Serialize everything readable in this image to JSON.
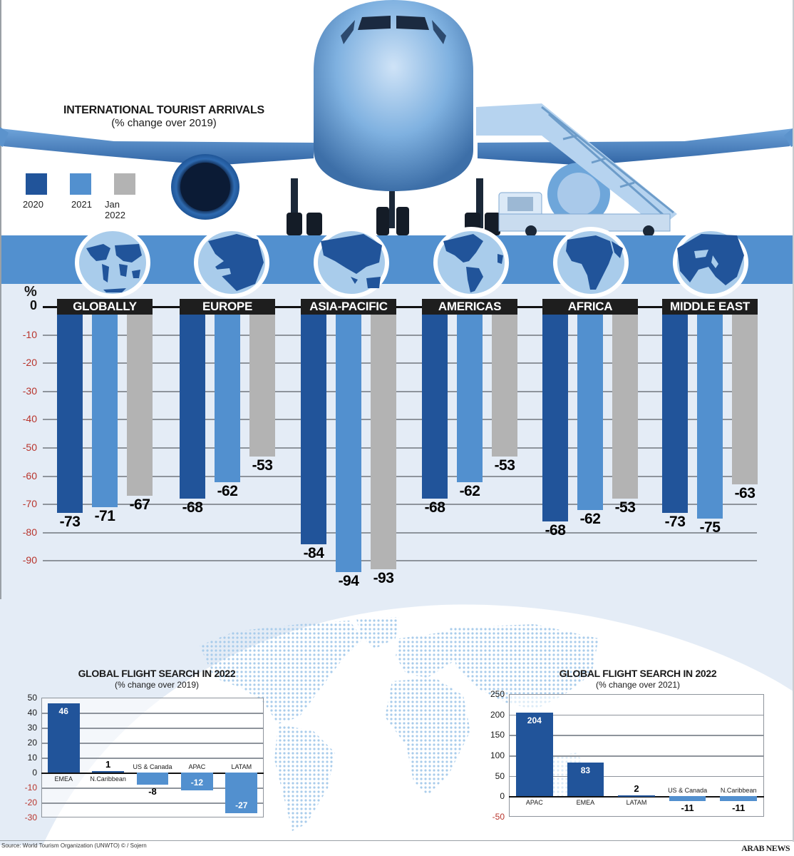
{
  "header": {
    "title": "INTERNATIONAL TOURIST ARRIVALS",
    "subtitle": "(% change over 2019)"
  },
  "legend": [
    {
      "label": "2020",
      "color": "#21549a"
    },
    {
      "label": "2021",
      "color": "#5290cf"
    },
    {
      "label": "Jan 2022",
      "color": "#b3b3b3"
    }
  ],
  "colors": {
    "band": "#5290cf",
    "chart_bg": "#e4ecf6",
    "globe_land": "#21549a",
    "globe_sea": "#a9cceb",
    "tick_negative": "#b8342c",
    "label_bg": "#1e1e1e",
    "map_dots": "#a9cceb"
  },
  "main_chart": {
    "unit_label": "%",
    "yticks": [
      "0",
      "-10",
      "-20",
      "-30",
      "-40",
      "-50",
      "-60",
      "-70",
      "-80",
      "-90"
    ]
  },
  "chart_data": [
    {
      "type": "bar",
      "title": "INTERNATIONAL TOURIST ARRIVALS",
      "subtitle": "(% change over 2019)",
      "xlabel": "",
      "ylabel": "%",
      "ylim": [
        -100,
        0
      ],
      "grid": true,
      "legend_position": "top-left",
      "categories": [
        "GLOBALLY",
        "EUROPE",
        "ASIA-PACIFIC",
        "AMERICAS",
        "AFRICA",
        "MIDDLE EAST"
      ],
      "series": [
        {
          "name": "2020",
          "values": [
            -73,
            -68,
            -84,
            -68,
            -68,
            -73
          ]
        },
        {
          "name": "2021",
          "values": [
            -71,
            -62,
            -94,
            -62,
            -62,
            -75
          ]
        },
        {
          "name": "Jan 2022",
          "values": [
            -67,
            -53,
            -93,
            -53,
            -53,
            -63
          ]
        }
      ]
    },
    {
      "type": "bar",
      "title": "GLOBAL FLIGHT SEARCH IN 2022",
      "subtitle": "(% change over 2019)",
      "xlabel": "",
      "ylabel": "",
      "ylim": [
        -30,
        50
      ],
      "yticks": [
        "50",
        "40",
        "30",
        "20",
        "10",
        "0",
        "-10",
        "-20",
        "-30"
      ],
      "grid": true,
      "categories": [
        "EMEA",
        "N.Caribbean",
        "US & Canada",
        "APAC",
        "LATAM"
      ],
      "values": [
        46,
        1,
        -8,
        -12,
        -27
      ]
    },
    {
      "type": "bar",
      "title": "GLOBAL FLIGHT SEARCH IN 2022",
      "subtitle": "(% change over 2021)",
      "xlabel": "",
      "ylabel": "",
      "ylim": [
        -50,
        250
      ],
      "yticks": [
        "250",
        "200",
        "150",
        "100",
        "50",
        "0",
        "-50"
      ],
      "grid": true,
      "categories": [
        "APAC",
        "EMEA",
        "LATAM",
        "US & Canada",
        "N.Caribbean"
      ],
      "values": [
        204,
        83,
        2,
        -11,
        -11
      ]
    }
  ],
  "footer": {
    "source": "Source: World Tourism Organization (UNWTO) © / Sojern",
    "brand": "ARAB NEWS"
  }
}
